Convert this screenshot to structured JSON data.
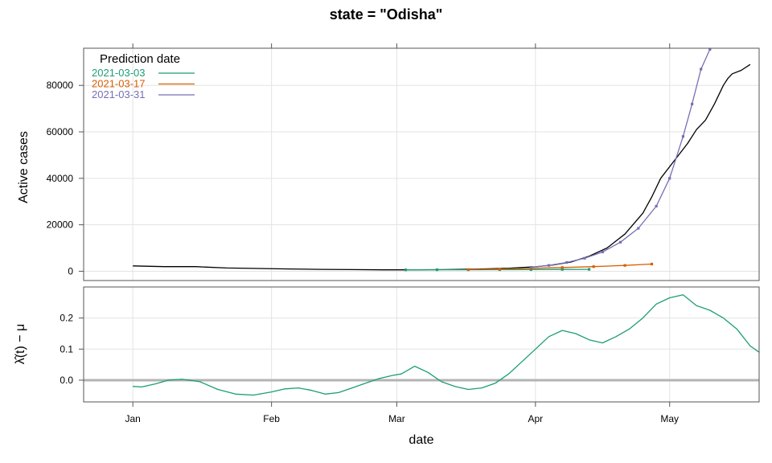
{
  "chart_data": {
    "type": "line",
    "title": "state = \"Odisha\"",
    "xlabel": "date",
    "x_ticks": [
      "Jan",
      "Feb",
      "Mar",
      "Apr",
      "May"
    ],
    "x_tick_dates": [
      "2021-01-01",
      "2021-02-01",
      "2021-03-01",
      "2021-04-01",
      "2021-05-01"
    ],
    "xlim": [
      "2020-12-21",
      "2021-05-21"
    ],
    "grid": true,
    "legend": {
      "title": "Prediction date",
      "placement": "top-left",
      "entries": [
        {
          "label": "2021-03-03",
          "color": "#1b9e77"
        },
        {
          "label": "2021-03-17",
          "color": "#d95f02"
        },
        {
          "label": "2021-03-31",
          "color": "#7570b3"
        }
      ]
    },
    "top_panel": {
      "ylabel": "Active cases",
      "ylim": [
        -4000,
        96000
      ],
      "y_ticks": [
        0,
        20000,
        40000,
        60000,
        80000
      ],
      "series": [
        {
          "color": "#000000",
          "points": [
            [
              "2021-01-01",
              2300
            ],
            [
              "2021-01-08",
              2000
            ],
            [
              "2021-01-15",
              2000
            ],
            [
              "2021-01-22",
              1400
            ],
            [
              "2021-01-29",
              1200
            ],
            [
              "2021-02-05",
              1000
            ],
            [
              "2021-02-12",
              800
            ],
            [
              "2021-02-19",
              700
            ],
            [
              "2021-02-26",
              600
            ],
            [
              "2021-03-05",
              600
            ],
            [
              "2021-03-12",
              700
            ],
            [
              "2021-03-19",
              900
            ],
            [
              "2021-03-26",
              1300
            ],
            [
              "2021-04-01",
              1900
            ],
            [
              "2021-04-05",
              2700
            ],
            [
              "2021-04-09",
              4000
            ],
            [
              "2021-04-13",
              6500
            ],
            [
              "2021-04-17",
              10000
            ],
            [
              "2021-04-21",
              16000
            ],
            [
              "2021-04-25",
              25000
            ],
            [
              "2021-04-27",
              32000
            ],
            [
              "2021-04-29",
              40000
            ],
            [
              "2021-05-01",
              45000
            ],
            [
              "2021-05-03",
              50000
            ],
            [
              "2021-05-05",
              55000
            ],
            [
              "2021-05-07",
              61000
            ],
            [
              "2021-05-09",
              65000
            ],
            [
              "2021-05-11",
              72000
            ],
            [
              "2021-05-13",
              80000
            ],
            [
              "2021-05-14",
              83000
            ],
            [
              "2021-05-15",
              85000
            ],
            [
              "2021-05-17",
              86500
            ],
            [
              "2021-05-19",
              89000
            ]
          ]
        },
        {
          "name": "2021-03-03",
          "color": "#1b9e77",
          "markers": true,
          "points": [
            [
              "2021-03-03",
              600
            ],
            [
              "2021-03-10",
              620
            ],
            [
              "2021-03-17",
              640
            ],
            [
              "2021-03-24",
              680
            ],
            [
              "2021-03-31",
              720
            ],
            [
              "2021-04-07",
              760
            ],
            [
              "2021-04-13",
              800
            ]
          ]
        },
        {
          "name": "2021-03-17",
          "color": "#d95f02",
          "markers": true,
          "points": [
            [
              "2021-03-17",
              700
            ],
            [
              "2021-03-24",
              950
            ],
            [
              "2021-03-31",
              1250
            ],
            [
              "2021-04-07",
              1600
            ],
            [
              "2021-04-14",
              2000
            ],
            [
              "2021-04-21",
              2500
            ],
            [
              "2021-04-27",
              3100
            ]
          ]
        },
        {
          "name": "2021-03-31",
          "color": "#7570b3",
          "markers": true,
          "points": [
            [
              "2021-03-31",
              1700
            ],
            [
              "2021-04-04",
              2500
            ],
            [
              "2021-04-08",
              3800
            ],
            [
              "2021-04-12",
              5600
            ],
            [
              "2021-04-16",
              8300
            ],
            [
              "2021-04-20",
              12500
            ],
            [
              "2021-04-24",
              18500
            ],
            [
              "2021-04-28",
              28000
            ],
            [
              "2021-05-01",
              40000
            ],
            [
              "2021-05-04",
              58000
            ],
            [
              "2021-05-06",
              72000
            ],
            [
              "2021-05-08",
              87000
            ],
            [
              "2021-05-10",
              95500
            ]
          ]
        }
      ]
    },
    "bottom_panel": {
      "ylabel": "λ̂(t) − μ",
      "ylim": [
        -0.07,
        0.3
      ],
      "y_ticks": [
        0,
        0.1,
        0.2
      ],
      "y_tick_labels": [
        "0.0",
        "0.1",
        "0.2"
      ],
      "reference_line": {
        "y": 0,
        "color": "#b3b3b3"
      },
      "series": [
        {
          "color": "#1b9e77",
          "points": [
            [
              "2021-01-01",
              -0.02
            ],
            [
              "2021-01-03",
              -0.022
            ],
            [
              "2021-01-06",
              -0.012
            ],
            [
              "2021-01-09",
              0.0
            ],
            [
              "2021-01-12",
              0.003
            ],
            [
              "2021-01-16",
              -0.005
            ],
            [
              "2021-01-20",
              -0.03
            ],
            [
              "2021-01-24",
              -0.045
            ],
            [
              "2021-01-28",
              -0.048
            ],
            [
              "2021-02-01",
              -0.038
            ],
            [
              "2021-02-04",
              -0.028
            ],
            [
              "2021-02-07",
              -0.025
            ],
            [
              "2021-02-10",
              -0.033
            ],
            [
              "2021-02-13",
              -0.045
            ],
            [
              "2021-02-16",
              -0.04
            ],
            [
              "2021-02-19",
              -0.025
            ],
            [
              "2021-02-22",
              -0.01
            ],
            [
              "2021-02-25",
              0.005
            ],
            [
              "2021-02-28",
              0.015
            ],
            [
              "2021-03-02",
              0.02
            ],
            [
              "2021-03-05",
              0.045
            ],
            [
              "2021-03-08",
              0.025
            ],
            [
              "2021-03-11",
              -0.005
            ],
            [
              "2021-03-14",
              -0.02
            ],
            [
              "2021-03-17",
              -0.03
            ],
            [
              "2021-03-20",
              -0.025
            ],
            [
              "2021-03-23",
              -0.01
            ],
            [
              "2021-03-26",
              0.02
            ],
            [
              "2021-03-29",
              0.06
            ],
            [
              "2021-04-01",
              0.1
            ],
            [
              "2021-04-04",
              0.14
            ],
            [
              "2021-04-07",
              0.16
            ],
            [
              "2021-04-10",
              0.15
            ],
            [
              "2021-04-13",
              0.13
            ],
            [
              "2021-04-16",
              0.12
            ],
            [
              "2021-04-19",
              0.14
            ],
            [
              "2021-04-22",
              0.165
            ],
            [
              "2021-04-25",
              0.2
            ],
            [
              "2021-04-28",
              0.245
            ],
            [
              "2021-05-01",
              0.265
            ],
            [
              "2021-05-04",
              0.275
            ],
            [
              "2021-05-07",
              0.24
            ],
            [
              "2021-05-10",
              0.225
            ],
            [
              "2021-05-13",
              0.2
            ],
            [
              "2021-05-16",
              0.165
            ],
            [
              "2021-05-19",
              0.11
            ],
            [
              "2021-05-21",
              0.09
            ]
          ]
        }
      ]
    }
  }
}
